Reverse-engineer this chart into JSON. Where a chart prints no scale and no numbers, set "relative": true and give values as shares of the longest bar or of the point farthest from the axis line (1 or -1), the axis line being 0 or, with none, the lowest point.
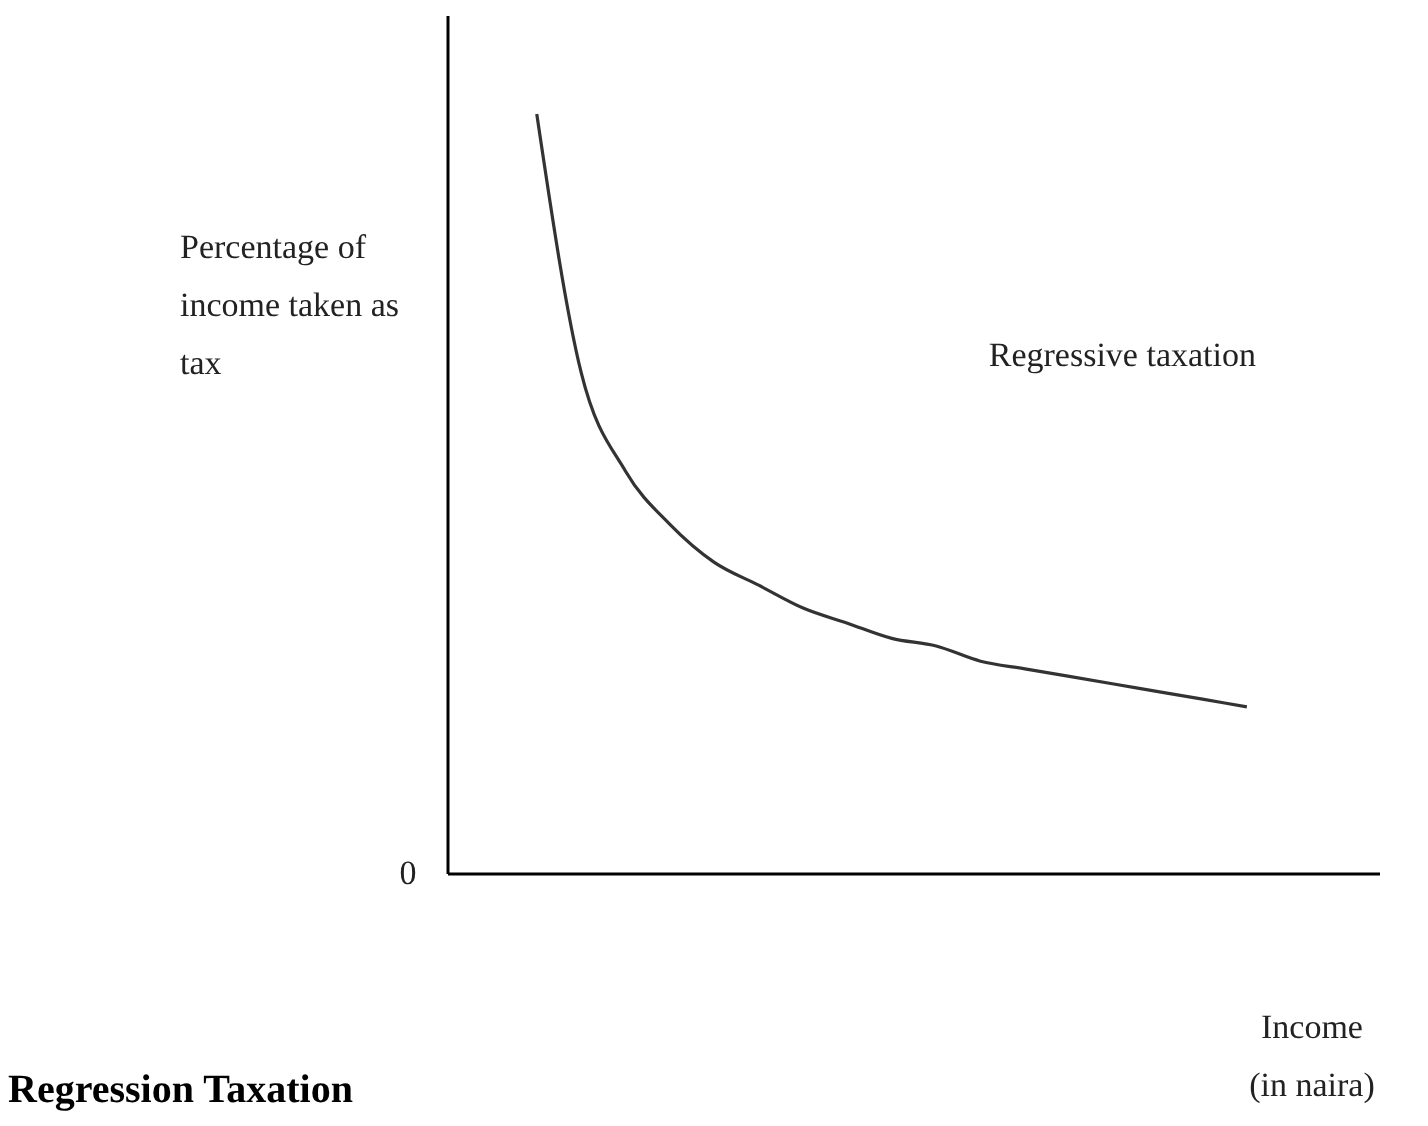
{
  "chart_data": {
    "type": "line",
    "relative": true,
    "title": "Regression Taxation",
    "xlabel": "Income (in naira)",
    "ylabel": "Percentage of income taken as tax",
    "annotations": [
      "Regressive taxation",
      "0"
    ],
    "categories": [
      null,
      null,
      null,
      null,
      null,
      null,
      null,
      null,
      null,
      null,
      null,
      null,
      null,
      null,
      null,
      null,
      null,
      null,
      null,
      null,
      null,
      null
    ],
    "series": [
      {
        "color": "#333333",
        "values": [
          null,
          null,
          1.0,
          0.66,
          0.53,
          0.46,
          0.41,
          0.38,
          0.35,
          0.33,
          0.31,
          0.3,
          0.28,
          0.27,
          0.26,
          0.25,
          0.24,
          0.23,
          0.22,
          null,
          null,
          null
        ]
      }
    ],
    "marker": "none",
    "line_style": "solid"
  }
}
